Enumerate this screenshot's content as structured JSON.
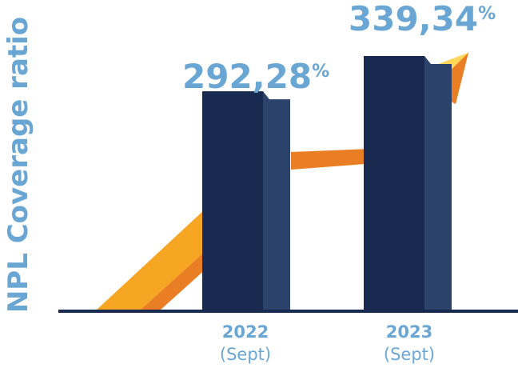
{
  "chart_data": {
    "type": "bar",
    "ylabel": "NPL Coverage ratio",
    "categories": [
      {
        "year": "2022",
        "sub": "(Sept)"
      },
      {
        "year": "2023",
        "sub": "(Sept)"
      }
    ],
    "values": [
      292.28,
      339.34
    ],
    "value_labels": [
      {
        "number": "292,28",
        "unit": "%"
      },
      {
        "number": "339,34",
        "unit": "%"
      }
    ],
    "trend": "up",
    "colors": {
      "bar_front": "#182a50",
      "bar_side": "#2b426a",
      "label": "#6aa6d4",
      "arrow_orange": "#e97e25",
      "arrow_yellow": "#f6a623",
      "arrow_highlight": "#fdd75a",
      "baseline": "#182a50"
    }
  }
}
